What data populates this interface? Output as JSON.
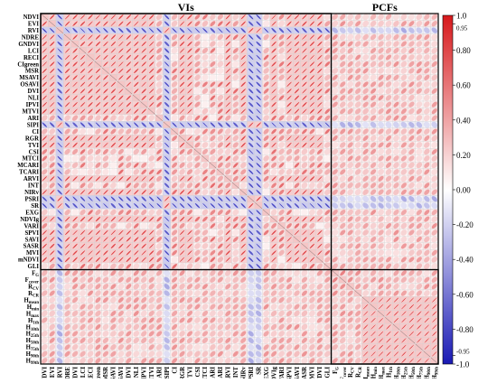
{
  "chart_data": {
    "type": "heatmap",
    "subtype": "correlation-ellipse-matrix",
    "group_labels": [
      "VIs",
      "PCFs"
    ],
    "row_labels": [
      "NDVI",
      "EVI",
      "RVI",
      "NDRE",
      "GNDVI",
      "LCI",
      "RECI",
      "CIgreen",
      "MSR",
      "MSAVI",
      "OSAVI",
      "DVI",
      "NLI",
      "IPVI",
      "MTVI",
      "ARI",
      "SIPI",
      "CI",
      "RGR",
      "TVI",
      "CSI",
      "MTCI",
      "MCARI",
      "TCARI",
      "ARVI",
      "INT",
      "NIRv",
      "PSRI",
      "SR",
      "EXG",
      "NDVIg",
      "VARI",
      "SPVI",
      "SAVI",
      "SASR",
      "MVI",
      "mNDVI",
      "GLI",
      "F_G",
      "F_cover",
      "R_CV",
      "R_CR",
      "H_mean",
      "H_min",
      "H_max",
      "H_1th",
      "H_10th",
      "H_25th",
      "H_50th",
      "H_75th",
      "H_90th",
      "H_99th"
    ],
    "col_labels": [
      "NDVI",
      "EVI",
      "RVI",
      "NDRE",
      "GNDVI",
      "LCI",
      "RECI",
      "CIgreen",
      "MSR",
      "MSAVI",
      "OSAVI",
      "DVI",
      "NLI",
      "IPVI",
      "MTVI",
      "ARI",
      "SIPI",
      "CI",
      "RGR",
      "TVI",
      "CSI",
      "MTCI",
      "MCARI",
      "TCARI",
      "ARVI",
      "INT",
      "NIRv",
      "PSRI",
      "SR",
      "EXG",
      "NDVIg",
      "VARI",
      "SPVI",
      "SAVI",
      "SASR",
      "MVI",
      "mNDVI",
      "GLI",
      "F_G",
      "F_cover",
      "R_CV",
      "R_CR",
      "H_mean",
      "H_min",
      "H_max",
      "H_1th",
      "H_10th",
      "H_25th",
      "H_50th",
      "H_75th",
      "H_90th",
      "H_99th"
    ],
    "row_label_text": [
      "NDVI",
      "EVI",
      "RVI",
      "NDRE",
      "GNDVI",
      "LCI",
      "RECI",
      "CIgreen",
      "MSR",
      "MSAVI",
      "OSAVI",
      "DVI",
      "NLI",
      "IPVI",
      "MTVI",
      "ARI",
      "SIPI",
      "CI",
      "RGR",
      "TVI",
      "CSI",
      "MTCI",
      "MCARI",
      "TCARI",
      "ARVI",
      "INT",
      "NIRv",
      "PSRI",
      "SR",
      "EXG",
      "NDVIg",
      "VARI",
      "SPVI",
      "SAVI",
      "SASR",
      "MVI",
      "mNDVI",
      "GLI",
      "F",
      "F",
      "R",
      "R",
      "H",
      "H",
      "H",
      "H",
      "H",
      "H",
      "H",
      "H",
      "H",
      "H"
    ],
    "row_label_sub": [
      "",
      "",
      "",
      "",
      "",
      "",
      "",
      "",
      "",
      "",
      "",
      "",
      "",
      "",
      "",
      "",
      "",
      "",
      "",
      "",
      "",
      "",
      "",
      "",
      "",
      "",
      "",
      "",
      "",
      "",
      "",
      "",
      "",
      "",
      "",
      "",
      "",
      "",
      "G",
      "cover",
      "CV",
      "CR",
      "mean",
      "min",
      "max",
      "1th",
      "10th",
      "25th",
      "50th",
      "75th",
      "90th",
      "99th"
    ],
    "col_label_text": [
      "NDVI",
      "EVI",
      "RVI",
      "NDRE",
      "GNDVI",
      "LCI",
      "RECI",
      "CIgreen",
      "MSR",
      "MSAVI",
      "OSAVI",
      "DVI",
      "NLI",
      "IPVI",
      "MTVI",
      "ARI",
      "SIPI",
      "CI",
      "RGR",
      "TVI",
      "CSI",
      "MTCI",
      "MCARI",
      "TCARI",
      "ARVI",
      "INT",
      "NIRv",
      "PSRI",
      "SR",
      "EXG",
      "NDVIg",
      "VARI",
      "SPVI",
      "SAVI",
      "SASR",
      "MVI",
      "mNDVI",
      "GLI",
      "F",
      "F",
      "R",
      "R",
      "H",
      "H",
      "H",
      "H",
      "H",
      "H",
      "H",
      "H",
      "H",
      "H"
    ],
    "col_label_sub": [
      "",
      "",
      "",
      "",
      "",
      "",
      "",
      "",
      "",
      "",
      "",
      "",
      "",
      "",
      "",
      "",
      "",
      "",
      "",
      "",
      "",
      "",
      "",
      "",
      "",
      "",
      "",
      "",
      "",
      "",
      "",
      "",
      "",
      "",
      "",
      "",
      "",
      "",
      "G",
      "cover",
      "CV",
      "CR",
      "mean",
      "min",
      "max",
      "1th",
      "10th",
      "25th",
      "50th",
      "75th",
      "90th",
      "99th"
    ],
    "colorbar": {
      "min": -1.0,
      "max": 1.0,
      "ticks": [
        "1.0",
        "0.95",
        "0.80",
        "0.60",
        "0.40",
        "0.20",
        "0.00",
        "-0.20",
        "-0.40",
        "-0.60",
        "-0.80",
        "-0.95",
        "-1.0"
      ],
      "tick_values": [
        1.0,
        0.95,
        0.8,
        0.6,
        0.4,
        0.2,
        0.0,
        -0.2,
        -0.4,
        -0.6,
        -0.8,
        -0.95,
        -1.0
      ],
      "negative_color": "#1a1ab4",
      "neutral_color": "#ffffff",
      "positive_color": "#d7191c"
    },
    "vi_count": 38,
    "pcf_count": 14,
    "block_values": {
      "vi_vi_default": 0.85,
      "vi_vi_anti_rows": [
        "RVI",
        "SIPI",
        "PSRI",
        "SR"
      ],
      "vi_vi_anti_value": -0.8,
      "vi_vi_weak_rows": [
        "ARI",
        "CI",
        "CSI",
        "MTCI",
        "MCARI",
        "TCARI",
        "INT",
        "EXG",
        "VARI",
        "GLI"
      ],
      "vi_vi_weak_value": 0.35,
      "vi_pcf_default": 0.3,
      "vi_pcf_neg_rows": [
        "RVI",
        "SIPI",
        "PSRI",
        "SR"
      ],
      "vi_pcf_neg_value": -0.25,
      "pcf_height_block_value": 0.92,
      "pcf_cover_value": 0.35,
      "pcf_cover_height_value": 0.3
    },
    "grid": true,
    "legend": "right"
  }
}
